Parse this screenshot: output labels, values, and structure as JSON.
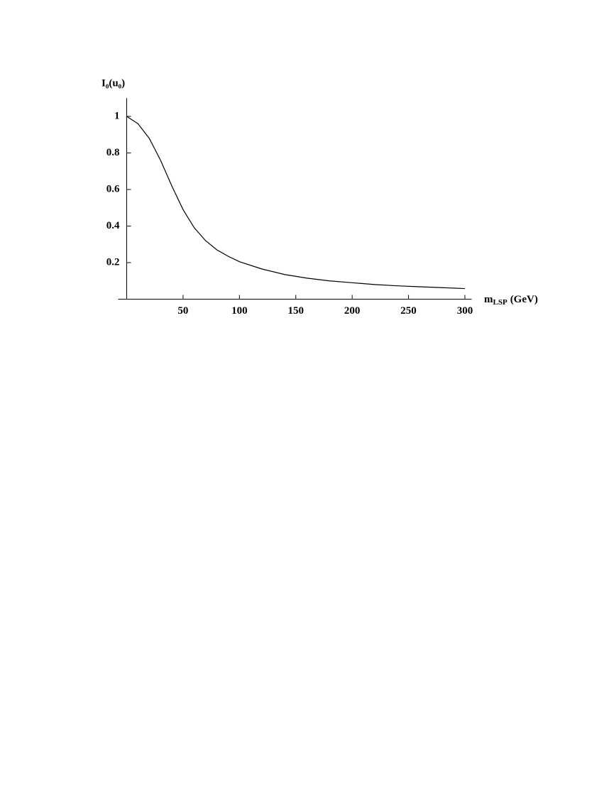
{
  "chart_data": {
    "type": "line",
    "y_label": "I₀(u₀)",
    "x_label": {
      "main": "m",
      "sub": "LSP",
      "unit": "(GeV)"
    },
    "x": [
      0,
      10,
      20,
      30,
      40,
      50,
      60,
      70,
      80,
      90,
      100,
      120,
      140,
      160,
      180,
      200,
      220,
      240,
      260,
      280,
      300
    ],
    "series": [
      {
        "color": "#000000",
        "values": [
          1.0,
          0.96,
          0.88,
          0.76,
          0.62,
          0.49,
          0.39,
          0.32,
          0.27,
          0.235,
          0.205,
          0.165,
          0.135,
          0.115,
          0.1,
          0.09,
          0.08,
          0.073,
          0.068,
          0.063,
          0.058
        ]
      }
    ],
    "xlim": [
      0,
      306
    ],
    "ylim": [
      0,
      1.1
    ],
    "xticks": [
      50,
      100,
      150,
      200,
      250,
      300
    ],
    "yticks": [
      0.2,
      0.4,
      0.6,
      0.8,
      1
    ]
  }
}
